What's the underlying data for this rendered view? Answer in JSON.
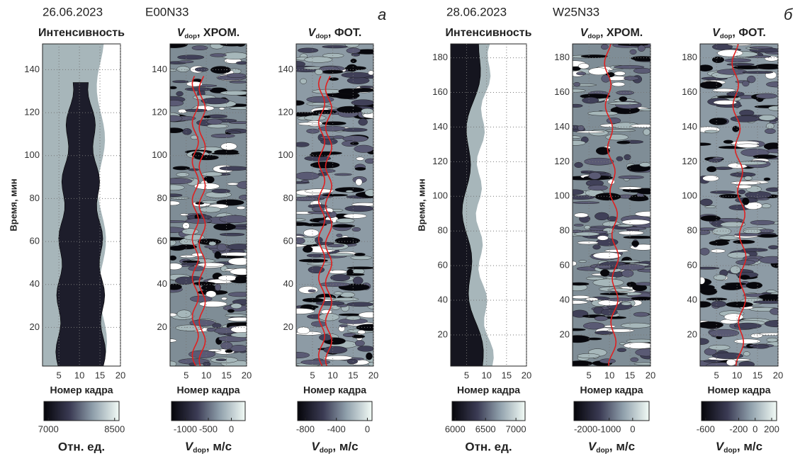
{
  "figure_labels": [
    {
      "date": "26.06.2023",
      "region": "E00N33",
      "letter": "а"
    },
    {
      "date": "28.06.2023",
      "region": "W25N33",
      "letter": "б"
    }
  ],
  "chart_data": [
    {
      "type": "contour",
      "title": "Интенсивность",
      "xlabel": "Номер кадра",
      "ylabel": "Время, мин",
      "xlim": [
        1,
        20
      ],
      "xticks": [
        5,
        10,
        15,
        20
      ],
      "ylim": [
        2,
        152
      ],
      "yticks": [
        20,
        40,
        60,
        80,
        100,
        120,
        140
      ],
      "grid": true,
      "colorbar": {
        "lim": [
          6900,
          8600
        ],
        "ticks": [
          7000,
          8500
        ],
        "label": "Отн. ед."
      }
    },
    {
      "type": "contour",
      "title": {
        "symbol": "V",
        "subscript": "dop",
        "text": ", ХРОМ."
      },
      "xlabel": "Номер кадра",
      "xlim": [
        1,
        20
      ],
      "xticks": [
        5,
        10,
        15,
        20
      ],
      "ylim": [
        2,
        152
      ],
      "yticks": [
        20,
        40,
        60,
        80,
        100,
        120,
        140
      ],
      "grid": true,
      "colorbar": {
        "lim": [
          -1300,
          300
        ],
        "ticks": [
          -1000,
          -500,
          0
        ],
        "label": {
          "symbol": "V",
          "subscript": "dop",
          "text": ", м/с"
        }
      }
    },
    {
      "type": "contour",
      "title": {
        "symbol": "V",
        "subscript": "dop",
        "text": ", ФОТ."
      },
      "xlabel": "Номер кадра",
      "xlim": [
        1,
        20
      ],
      "xticks": [
        5,
        10,
        15,
        20
      ],
      "ylim": [
        2,
        152
      ],
      "yticks": [
        20,
        40,
        60,
        80,
        100,
        120,
        140
      ],
      "grid": true,
      "colorbar": {
        "lim": [
          -900,
          60
        ],
        "ticks": [
          -800,
          -400,
          0
        ],
        "label": {
          "symbol": "V",
          "subscript": "dop",
          "text": ", м/с"
        }
      }
    },
    {
      "type": "contour",
      "title": "Интенсивность",
      "xlabel": "Номер кадра",
      "ylabel": "Время, мин",
      "xlim": [
        1,
        20
      ],
      "xticks": [
        5,
        10,
        15,
        20
      ],
      "ylim": [
        2,
        188
      ],
      "yticks": [
        20,
        40,
        60,
        80,
        100,
        120,
        140,
        160,
        180
      ],
      "grid": true,
      "colorbar": {
        "lim": [
          5950,
          7150
        ],
        "ticks": [
          6000,
          6500,
          7000
        ],
        "label": "Отн. ед."
      }
    },
    {
      "type": "contour",
      "title": {
        "symbol": "V",
        "subscript": "dop",
        "text": ", ХРОМ."
      },
      "xlabel": "Номер кадра",
      "xlim": [
        1,
        20
      ],
      "xticks": [
        5,
        10,
        15,
        20
      ],
      "ylim": [
        2,
        188
      ],
      "yticks": [
        20,
        40,
        60,
        80,
        100,
        120,
        140,
        160,
        180
      ],
      "grid": true,
      "colorbar": {
        "lim": [
          -2500,
          700
        ],
        "ticks": [
          -2000,
          -1000,
          0
        ],
        "label": {
          "symbol": "V",
          "subscript": "dop",
          "text": ", м/с"
        }
      }
    },
    {
      "type": "contour",
      "title": {
        "symbol": "V",
        "subscript": "dop",
        "text": ", ФОТ."
      },
      "xlabel": "Номер кадра",
      "xlim": [
        1,
        20
      ],
      "xticks": [
        5,
        10,
        15,
        20
      ],
      "ylim": [
        2,
        188
      ],
      "yticks": [
        20,
        40,
        60,
        80,
        100,
        120,
        140,
        160,
        180
      ],
      "grid": true,
      "colorbar": {
        "lim": [
          -650,
          260
        ],
        "ticks": [
          -600,
          -200,
          0,
          200
        ],
        "label": {
          "symbol": "V",
          "subscript": "dop",
          "text": ", м/с"
        }
      }
    }
  ]
}
